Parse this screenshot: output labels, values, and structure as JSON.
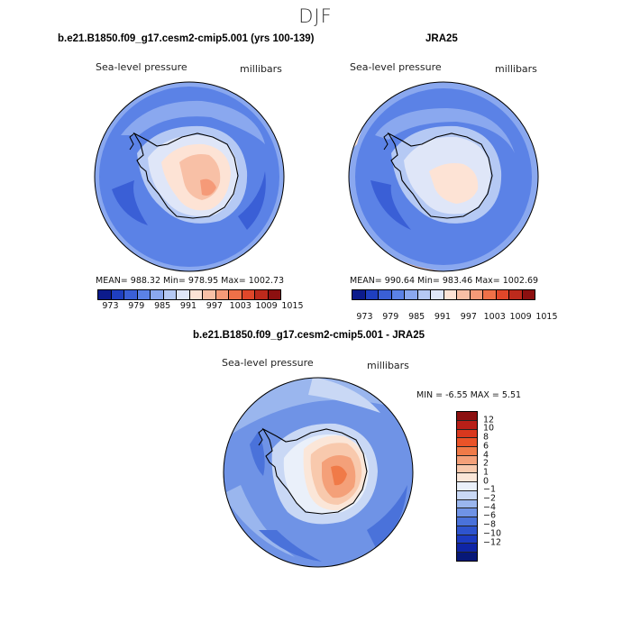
{
  "figure": {
    "season": "DJF"
  },
  "panels": [
    {
      "title": "b.e21.B1850.f09_g17.cesm2-cmip5.001 (yrs 100-139)",
      "variable": "Sea-level pressure",
      "units": "millibars",
      "stats": "MEAN= 988.32   Min= 978.95   Max= 1002.73"
    },
    {
      "title": "JRA25",
      "variable": "Sea-level pressure",
      "units": "millibars",
      "stats": "MEAN= 990.64   Min= 983.46   Max= 1002.69"
    },
    {
      "title": "b.e21.B1850.f09_g17.cesm2-cmip5.001 - JRA25",
      "variable": "Sea-level pressure",
      "units": "millibars",
      "stats": "MIN =   -6.55 MAX =    5.51"
    }
  ],
  "colorbar_abs": {
    "colors": [
      "#0c1b8c",
      "#1f3fbf",
      "#3a5fd6",
      "#5b82e6",
      "#8aa8ef",
      "#b5c9f4",
      "#dfe6f8",
      "#fde3d5",
      "#f8c0a6",
      "#f59a78",
      "#ef7048",
      "#e0472a",
      "#bd2a1c",
      "#8c1010"
    ],
    "labels": [
      "973",
      "979",
      "985",
      "991",
      "997",
      "1003",
      "1009",
      "1015"
    ]
  },
  "colorbar_diff": {
    "colors": [
      "#8c1010",
      "#b81f18",
      "#d9381e",
      "#ea5328",
      "#f07a48",
      "#f4a079",
      "#f8c9ad",
      "#fbe6d8",
      "#eaf0fa",
      "#c9d8f5",
      "#9ab6ee",
      "#6f93e6",
      "#4a72da",
      "#2e54ce",
      "#1c3bc1",
      "#0f25a6",
      "#071878"
    ],
    "labels": [
      "12",
      "10",
      "8",
      "6",
      "4",
      "2",
      "1",
      "0",
      "−1",
      "−2",
      "−4",
      "−6",
      "−8",
      "−10",
      "−12"
    ]
  }
}
